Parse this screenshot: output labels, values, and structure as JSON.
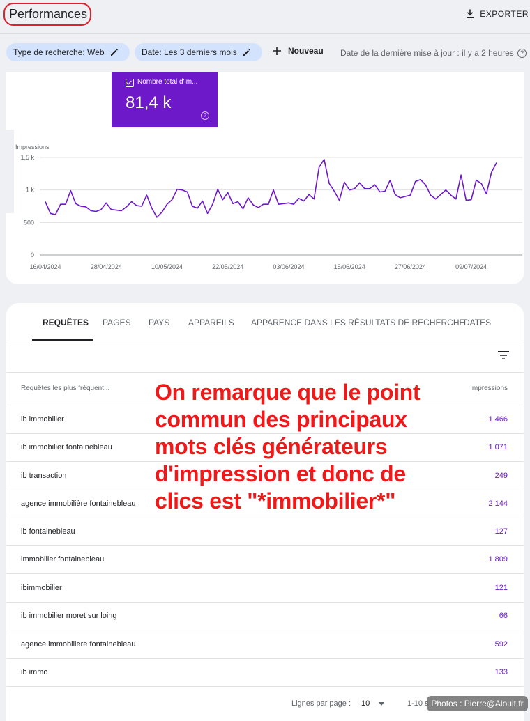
{
  "header": {
    "title": "Performances",
    "export_label": "EXPORTER"
  },
  "filters": {
    "chip_search_type": "Type de recherche: Web",
    "chip_date": "Date: Les 3 derniers mois",
    "new_label": "Nouveau",
    "last_update": "Date de la dernière mise à jour : il y a 2 heures"
  },
  "metric": {
    "label": "Nombre total d'im...",
    "value": "81,4 k",
    "color": "#6d18c9"
  },
  "chart_data": {
    "type": "line",
    "ylabel": "Impressions",
    "ylim": [
      0,
      1500
    ],
    "yticks": [
      {
        "value": 0,
        "label": "0"
      },
      {
        "value": 500,
        "label": "500"
      },
      {
        "value": 1000,
        "label": "1 k"
      },
      {
        "value": 1500,
        "label": "1,5 k"
      }
    ],
    "xtick_labels": [
      "16/04/2024",
      "28/04/2024",
      "10/05/2024",
      "22/05/2024",
      "03/06/2024",
      "15/06/2024",
      "27/06/2024",
      "09/07/2024"
    ],
    "xtick_index": [
      0,
      12,
      24,
      36,
      48,
      60,
      72,
      84
    ],
    "series": [
      {
        "color": "#6d18c9",
        "values": [
          820,
          640,
          620,
          780,
          780,
          990,
          790,
          750,
          740,
          680,
          670,
          700,
          800,
          700,
          690,
          680,
          740,
          820,
          760,
          750,
          920,
          720,
          580,
          660,
          780,
          850,
          1010,
          1000,
          970,
          750,
          720,
          830,
          640,
          780,
          1010,
          850,
          960,
          790,
          820,
          710,
          880,
          770,
          730,
          780,
          780,
          1000,
          780,
          790,
          800,
          780,
          870,
          830,
          930,
          860,
          1350,
          1470,
          1100,
          980,
          840,
          1120,
          1000,
          1020,
          1110,
          1020,
          1020,
          1080,
          970,
          980,
          1150,
          930,
          880,
          900,
          920,
          1130,
          1160,
          1080,
          920,
          860,
          930,
          1000,
          920,
          860,
          1230,
          840,
          850,
          1150,
          1100,
          940,
          1270,
          1420
        ]
      }
    ]
  },
  "tabs": [
    "REQUÊTES",
    "PAGES",
    "PAYS",
    "APPAREILS",
    "APPARENCE DANS LES RÉSULTATS DE RECHERCHE",
    "DATES"
  ],
  "table": {
    "col_query": "Requêtes les plus fréquent...",
    "col_impressions": "Impressions",
    "rows": [
      {
        "query": "ib immobilier",
        "impressions": "1 466"
      },
      {
        "query": "ib immobilier fontainebleau",
        "impressions": "1 071"
      },
      {
        "query": "ib transaction",
        "impressions": "249"
      },
      {
        "query": "agence immobilière fontainebleau",
        "impressions": "2 144"
      },
      {
        "query": "ib fontainebleau",
        "impressions": "127"
      },
      {
        "query": "immobilier fontainebleau",
        "impressions": "1 809"
      },
      {
        "query": "ibimmobilier",
        "impressions": "121"
      },
      {
        "query": "ib immobilier moret sur loing",
        "impressions": "66"
      },
      {
        "query": "agence immobiliere fontainebleau",
        "impressions": "592"
      },
      {
        "query": "ib immo",
        "impressions": "133"
      }
    ]
  },
  "pagination": {
    "rows_label": "Lignes par page :",
    "rows_value": "10",
    "range_label": "1-10 s"
  },
  "annotation": {
    "text": "On remarque que le point commun des principaux mots clés générateurs d'impression et donc de clics est \"*immobilier*\"",
    "color": "#f01818"
  },
  "watermark": "Photos : Pierre@Alouit.fr"
}
